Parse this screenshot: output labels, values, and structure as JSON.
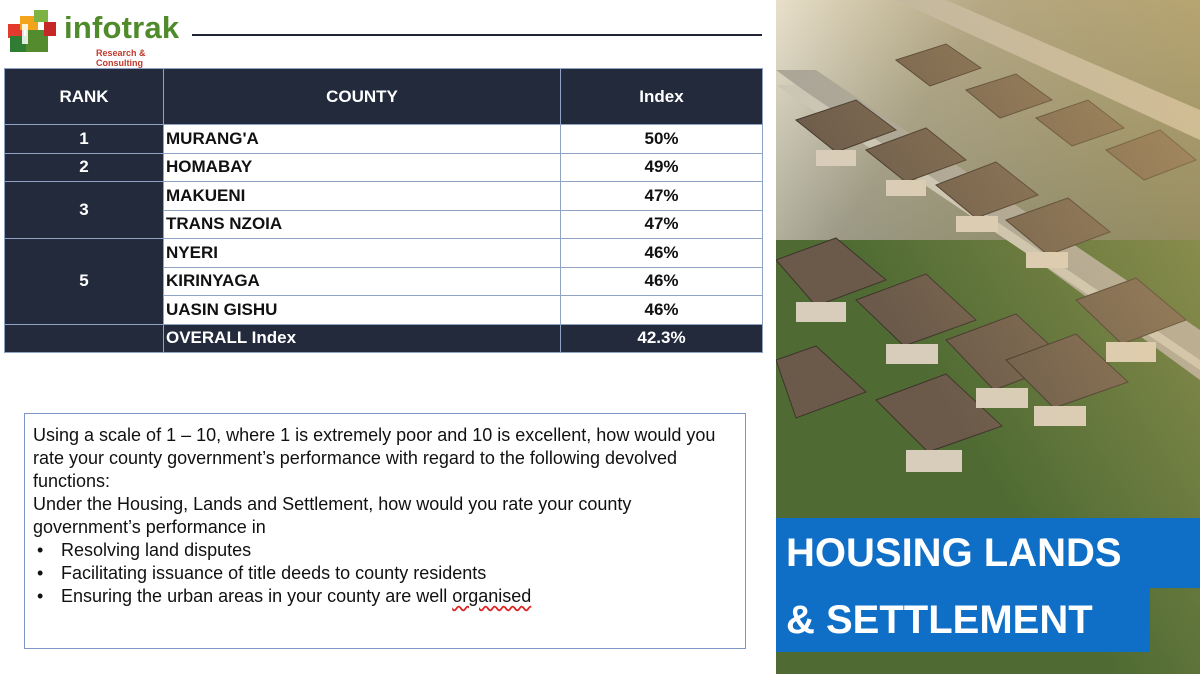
{
  "logo": {
    "name": "infotrak",
    "tagline": "Research & Consulting"
  },
  "table": {
    "headers": {
      "rank": "RANK",
      "county": "COUNTY",
      "index": "Index"
    },
    "groups": [
      {
        "rank": "1",
        "rows": [
          {
            "county": "MURANG'A",
            "index": "50%"
          }
        ]
      },
      {
        "rank": "2",
        "rows": [
          {
            "county": "HOMABAY",
            "index": "49%"
          }
        ]
      },
      {
        "rank": "3",
        "rows": [
          {
            "county": "MAKUENI",
            "index": "47%"
          },
          {
            "county": "TRANS NZOIA",
            "index": "47%"
          }
        ]
      },
      {
        "rank": "5",
        "rows": [
          {
            "county": "NYERI",
            "index": "46%"
          },
          {
            "county": "KIRINYAGA",
            "index": "46%"
          },
          {
            "county": "UASIN GISHU",
            "index": "46%"
          }
        ]
      }
    ],
    "overall": {
      "label": "OVERALL Index",
      "value": "42.3%"
    }
  },
  "question": {
    "intro": "Using a scale of 1 – 10, where 1 is extremely poor and 10 is excellent, how would you rate your county government’s performance with regard to the following devolved functions:",
    "sub": "Under the Housing, Lands and Settlement, how would you rate your county government’s performance in",
    "bullets": [
      "Resolving land disputes",
      "Facilitating issuance of title deeds to county residents",
      "Ensuring the urban areas in your county are well "
    ],
    "last_word": "organised"
  },
  "banner": {
    "line1": "HOUSING  LANDS",
    "line2": "& SETTLEMENT"
  },
  "colors": {
    "navy": "#222a3b",
    "accent_blue": "#0f6fc6",
    "logo_green": "#4f8a2b"
  }
}
